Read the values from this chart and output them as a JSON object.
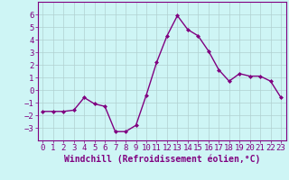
{
  "x": [
    0,
    1,
    2,
    3,
    4,
    5,
    6,
    7,
    8,
    9,
    10,
    11,
    12,
    13,
    14,
    15,
    16,
    17,
    18,
    19,
    20,
    21,
    22,
    23
  ],
  "y": [
    -1.7,
    -1.7,
    -1.7,
    -1.6,
    -0.6,
    -1.1,
    -1.3,
    -3.3,
    -3.3,
    -2.8,
    -0.4,
    2.2,
    4.3,
    5.9,
    4.8,
    4.3,
    3.1,
    1.6,
    0.7,
    1.3,
    1.1,
    1.1,
    0.7,
    -0.6
  ],
  "line_color": "#800080",
  "marker": "D",
  "marker_size": 2.0,
  "bg_color": "#cef5f5",
  "grid_color": "#b0d0d0",
  "xlabel": "Windchill (Refroidissement éolien,°C)",
  "ylim": [
    -4,
    7
  ],
  "xlim": [
    -0.5,
    23.5
  ],
  "yticks": [
    -3,
    -2,
    -1,
    0,
    1,
    2,
    3,
    4,
    5,
    6
  ],
  "xticks": [
    0,
    1,
    2,
    3,
    4,
    5,
    6,
    7,
    8,
    9,
    10,
    11,
    12,
    13,
    14,
    15,
    16,
    17,
    18,
    19,
    20,
    21,
    22,
    23
  ],
  "tick_color": "#800080",
  "label_color": "#800080",
  "font_size": 6.5,
  "xlabel_fontsize": 7.0,
  "linewidth": 1.0
}
